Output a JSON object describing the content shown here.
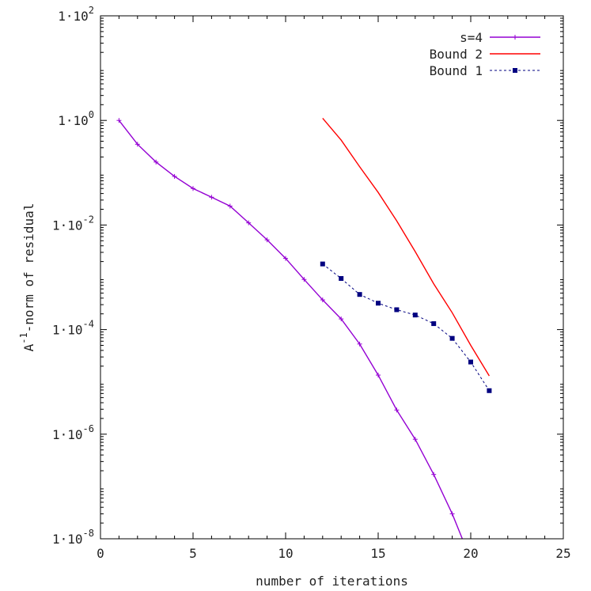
{
  "chart_data": {
    "type": "line",
    "xlabel": "number of iterations",
    "ylabel": "A^-1-norm of residual",
    "ylabel_parts": {
      "base": "A",
      "sup": "-1",
      "rest": "-norm of residual"
    },
    "xlim": [
      0,
      25
    ],
    "ylim": [
      1e-08,
      100
    ],
    "y_scale": "log",
    "grid": false,
    "legend_position": "top-right",
    "x_ticks": [
      0,
      5,
      10,
      15,
      20,
      25
    ],
    "x_tick_labels": [
      "0",
      "5",
      "10",
      "15",
      "20",
      "25"
    ],
    "y_ticks": [
      1e-08,
      1e-06,
      0.0001,
      0.01,
      1,
      100
    ],
    "y_tick_labels": [
      {
        "mant": "1·10",
        "exp": "-8"
      },
      {
        "mant": "1·10",
        "exp": "-6"
      },
      {
        "mant": "1·10",
        "exp": "-4"
      },
      {
        "mant": "1·10",
        "exp": "-2"
      },
      {
        "mant": "1·10",
        "exp": "0"
      },
      {
        "mant": "1·10",
        "exp": "2"
      }
    ],
    "series": [
      {
        "name": "s=4",
        "color": "#9400d3",
        "marker": "plus",
        "line": "solid",
        "x": [
          1,
          2,
          3,
          4,
          5,
          6,
          7,
          8,
          9,
          10,
          11,
          12,
          13,
          14,
          15,
          16,
          17,
          18,
          19,
          20
        ],
        "y": [
          1.0,
          0.35,
          0.16,
          0.085,
          0.05,
          0.034,
          0.023,
          0.011,
          0.0052,
          0.0023,
          0.00091,
          0.00037,
          0.00016,
          5.3e-05,
          1.35e-05,
          2.9e-06,
          8e-07,
          1.7e-07,
          3e-08,
          4e-09
        ]
      },
      {
        "name": "Bound 2",
        "color": "#ff0000",
        "marker": "none",
        "line": "solid",
        "x": [
          12,
          13,
          14,
          15,
          16,
          17,
          18,
          19,
          20,
          21
        ],
        "y": [
          1.1,
          0.42,
          0.13,
          0.042,
          0.012,
          0.0031,
          0.00075,
          0.00021,
          5e-05,
          1.3e-05
        ]
      },
      {
        "name": "Bound 1",
        "color": "#000080",
        "marker": "square",
        "line": "dotted",
        "x": [
          12,
          13,
          14,
          15,
          16,
          17,
          18,
          19,
          20,
          21
        ],
        "y": [
          0.0018,
          0.00095,
          0.00047,
          0.00032,
          0.00024,
          0.00019,
          0.00013,
          6.8e-05,
          2.4e-05,
          6.8e-06
        ]
      }
    ]
  }
}
